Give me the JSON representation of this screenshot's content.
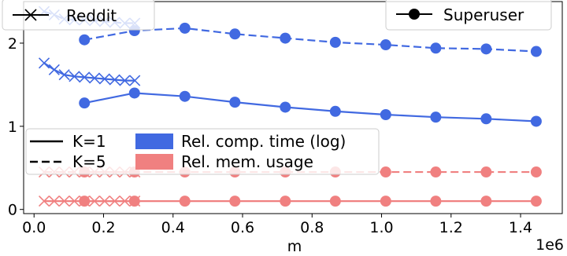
{
  "chart_data": {
    "type": "line",
    "xlabel": "m",
    "ylabel": "",
    "x_offset_label": "1e6",
    "xlim": [
      -0.03,
      1.52
    ],
    "ylim": [
      -0.05,
      2.5
    ],
    "x_ticks": [
      0.0,
      0.2,
      0.4,
      0.6,
      0.8,
      1.0,
      1.2,
      1.4
    ],
    "x_tick_labels": [
      "0.0",
      "0.2",
      "0.4",
      "0.6",
      "0.8",
      "1.0",
      "1.2",
      "1.4"
    ],
    "y_ticks": [
      0,
      1,
      2
    ],
    "y_tick_labels": [
      "0",
      "1",
      "2"
    ],
    "grid": false,
    "colors": {
      "comp_time": "#4169e1",
      "mem_usage": "#f08080",
      "legend_line": "#000000"
    },
    "legends": {
      "dataset": [
        {
          "label": "Reddit",
          "marker": "x",
          "placement": "top-left"
        },
        {
          "label": "Superuser",
          "marker": "o",
          "placement": "top-right"
        }
      ],
      "k": [
        {
          "label": "K=1",
          "linestyle": "solid"
        },
        {
          "label": "K=5",
          "linestyle": "dashed"
        }
      ],
      "metric": [
        {
          "label": "Rel. comp. time (log)",
          "color_key": "comp_time"
        },
        {
          "label": "Rel. mem. usage",
          "color_key": "mem_usage"
        }
      ]
    },
    "series": [
      {
        "dataset": "Reddit",
        "metric": "comp_time",
        "k": "K=5",
        "marker": "x",
        "linestyle": "dashed",
        "x": [
          0.029,
          0.058,
          0.087,
          0.116,
          0.145,
          0.174,
          0.203,
          0.232,
          0.261,
          0.29
        ],
        "y": [
          2.38,
          2.34,
          2.29,
          2.28,
          2.28,
          2.27,
          2.26,
          2.25,
          2.24,
          2.24
        ]
      },
      {
        "dataset": "Reddit",
        "metric": "comp_time",
        "k": "K=1",
        "marker": "x",
        "linestyle": "solid",
        "x": [
          0.029,
          0.058,
          0.087,
          0.116,
          0.145,
          0.174,
          0.203,
          0.232,
          0.261,
          0.29
        ],
        "y": [
          1.76,
          1.68,
          1.62,
          1.6,
          1.59,
          1.58,
          1.57,
          1.56,
          1.55,
          1.55
        ]
      },
      {
        "dataset": "Reddit",
        "metric": "mem_usage",
        "k": "K=5",
        "marker": "x",
        "linestyle": "dashed",
        "x": [
          0.029,
          0.058,
          0.087,
          0.116,
          0.145,
          0.174,
          0.203,
          0.232,
          0.261,
          0.29
        ],
        "y": [
          0.45,
          0.45,
          0.45,
          0.45,
          0.45,
          0.45,
          0.45,
          0.45,
          0.45,
          0.45
        ]
      },
      {
        "dataset": "Reddit",
        "metric": "mem_usage",
        "k": "K=1",
        "marker": "x",
        "linestyle": "solid",
        "x": [
          0.029,
          0.058,
          0.087,
          0.116,
          0.145,
          0.174,
          0.203,
          0.232,
          0.261,
          0.29
        ],
        "y": [
          0.1,
          0.1,
          0.1,
          0.1,
          0.1,
          0.1,
          0.1,
          0.1,
          0.1,
          0.1
        ]
      },
      {
        "dataset": "Superuser",
        "metric": "comp_time",
        "k": "K=5",
        "marker": "o",
        "linestyle": "dashed",
        "x": [
          0.145,
          0.289,
          0.434,
          0.578,
          0.723,
          0.867,
          1.012,
          1.156,
          1.301,
          1.445
        ],
        "y": [
          2.04,
          2.15,
          2.18,
          2.11,
          2.06,
          2.01,
          1.98,
          1.94,
          1.93,
          1.9
        ]
      },
      {
        "dataset": "Superuser",
        "metric": "comp_time",
        "k": "K=1",
        "marker": "o",
        "linestyle": "solid",
        "x": [
          0.145,
          0.289,
          0.434,
          0.578,
          0.723,
          0.867,
          1.012,
          1.156,
          1.301,
          1.445
        ],
        "y": [
          1.28,
          1.4,
          1.36,
          1.29,
          1.23,
          1.18,
          1.14,
          1.11,
          1.09,
          1.06
        ]
      },
      {
        "dataset": "Superuser",
        "metric": "mem_usage",
        "k": "K=5",
        "marker": "o",
        "linestyle": "dashed",
        "x": [
          0.145,
          0.289,
          0.434,
          0.578,
          0.723,
          0.867,
          1.012,
          1.156,
          1.301,
          1.445
        ],
        "y": [
          0.45,
          0.45,
          0.45,
          0.45,
          0.45,
          0.45,
          0.45,
          0.45,
          0.45,
          0.45
        ]
      },
      {
        "dataset": "Superuser",
        "metric": "mem_usage",
        "k": "K=1",
        "marker": "o",
        "linestyle": "solid",
        "x": [
          0.145,
          0.289,
          0.434,
          0.578,
          0.723,
          0.867,
          1.012,
          1.156,
          1.301,
          1.445
        ],
        "y": [
          0.1,
          0.1,
          0.1,
          0.1,
          0.1,
          0.1,
          0.1,
          0.1,
          0.1,
          0.1
        ]
      }
    ]
  }
}
